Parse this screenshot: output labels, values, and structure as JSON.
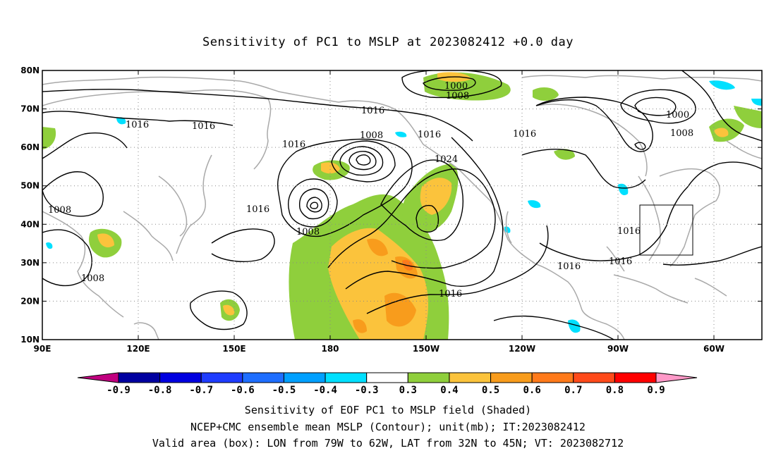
{
  "title": "Sensitivity of PC1 to MSLP at 2023082412 +0.0 day",
  "lat_labels": [
    "80N",
    "70N",
    "60N",
    "50N",
    "40N",
    "30N",
    "20N",
    "10N"
  ],
  "lon_labels": [
    "90E",
    "120E",
    "150E",
    "180",
    "150W",
    "120W",
    "90W",
    "60W"
  ],
  "contour_labels": {
    "c1016_a": "1016",
    "c1016_b": "1016",
    "c1016_c": "1016",
    "c1016_d": "1016",
    "c1016_e": "1016",
    "c1016_f": "1016",
    "c1016_g": "1016",
    "c1016_h": "1016",
    "c1016_i": "1016",
    "c1016_j": "1016",
    "c1016_k": "1016",
    "c1008_a": "1008",
    "c1008_b": "1008",
    "c1008_c": "1008",
    "c1008_d": "1008",
    "c1008_e": "1008",
    "c1008_f": "1008",
    "c1000_a": "1000",
    "c1000_b": "1000",
    "c1024_a": "1024"
  },
  "colorbar": {
    "labels": [
      "-0.9",
      "-0.8",
      "-0.7",
      "-0.6",
      "-0.5",
      "-0.4",
      "-0.3",
      "0.3",
      "0.4",
      "0.5",
      "0.6",
      "0.7",
      "0.8",
      "0.9"
    ],
    "colors": [
      "#0000a0",
      "#0000e0",
      "#1e3cff",
      "#1e6eff",
      "#00a0ff",
      "#00e0ff",
      "#ffffff",
      "#8fcf3c",
      "#fbc33c",
      "#f89c1c",
      "#ff7a1a",
      "#ff4a1a",
      "#ff0000"
    ],
    "low_end_color": "#c0007f",
    "high_end_color": "#ff99c8"
  },
  "footer": {
    "line1": "Sensitivity of EOF PC1 to MSLP field (Shaded)",
    "line2": "NCEP+CMC ensemble mean MSLP (Contour); unit(mb); IT:2023082412",
    "line3": "Valid area (box): LON from 79W to 62W, LAT from 32N to 45N; VT: 2023082712"
  },
  "colors": {
    "land": "#a9a9a9",
    "contour": "#000000",
    "grid": "#888888"
  }
}
